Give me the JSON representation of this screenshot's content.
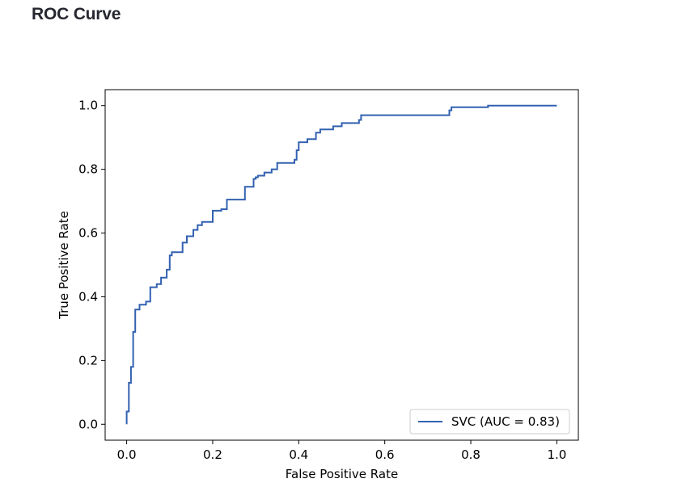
{
  "page": {
    "title": "ROC Curve"
  },
  "chart_data": {
    "type": "line",
    "title": "",
    "xlabel": "False Positive Rate",
    "ylabel": "True Positive Rate",
    "xlim": [
      -0.05,
      1.05
    ],
    "ylim": [
      -0.05,
      1.05
    ],
    "xticks": [
      "0.0",
      "0.2",
      "0.4",
      "0.6",
      "0.8",
      "1.0"
    ],
    "yticks": [
      "0.0",
      "0.2",
      "0.4",
      "0.6",
      "0.8",
      "1.0"
    ],
    "grid": false,
    "legend_position": "lower-right",
    "series": [
      {
        "name": "SVC (AUC = 0.83)",
        "color": "#3261b0",
        "step": true,
        "x": [
          0.0,
          0.0,
          0.005,
          0.005,
          0.01,
          0.01,
          0.015,
          0.015,
          0.02,
          0.02,
          0.03,
          0.03,
          0.045,
          0.045,
          0.055,
          0.055,
          0.07,
          0.07,
          0.08,
          0.08,
          0.093,
          0.093,
          0.1,
          0.1,
          0.105,
          0.105,
          0.13,
          0.13,
          0.14,
          0.14,
          0.155,
          0.155,
          0.165,
          0.165,
          0.175,
          0.175,
          0.2,
          0.2,
          0.22,
          0.22,
          0.233,
          0.233,
          0.275,
          0.275,
          0.295,
          0.295,
          0.3,
          0.3,
          0.305,
          0.305,
          0.32,
          0.32,
          0.337,
          0.337,
          0.35,
          0.35,
          0.37,
          0.37,
          0.39,
          0.39,
          0.395,
          0.395,
          0.4,
          0.4,
          0.42,
          0.42,
          0.44,
          0.44,
          0.45,
          0.45,
          0.48,
          0.48,
          0.5,
          0.5,
          0.54,
          0.54,
          0.545,
          0.545,
          0.59,
          0.59,
          0.75,
          0.75,
          0.755,
          0.755,
          0.84,
          0.84,
          1.0
        ],
        "y": [
          0.0,
          0.04,
          0.04,
          0.13,
          0.13,
          0.18,
          0.18,
          0.29,
          0.29,
          0.36,
          0.36,
          0.375,
          0.375,
          0.385,
          0.385,
          0.43,
          0.43,
          0.44,
          0.44,
          0.46,
          0.46,
          0.485,
          0.485,
          0.53,
          0.53,
          0.54,
          0.54,
          0.57,
          0.57,
          0.59,
          0.59,
          0.61,
          0.61,
          0.625,
          0.625,
          0.635,
          0.635,
          0.67,
          0.67,
          0.675,
          0.675,
          0.705,
          0.705,
          0.745,
          0.745,
          0.77,
          0.77,
          0.775,
          0.775,
          0.78,
          0.78,
          0.79,
          0.79,
          0.8,
          0.8,
          0.82,
          0.82,
          0.82,
          0.82,
          0.83,
          0.83,
          0.86,
          0.86,
          0.885,
          0.885,
          0.895,
          0.895,
          0.915,
          0.915,
          0.925,
          0.925,
          0.935,
          0.935,
          0.945,
          0.945,
          0.955,
          0.955,
          0.97,
          0.97,
          0.97,
          0.97,
          0.985,
          0.985,
          0.995,
          0.995,
          1.0,
          1.0
        ]
      }
    ]
  }
}
